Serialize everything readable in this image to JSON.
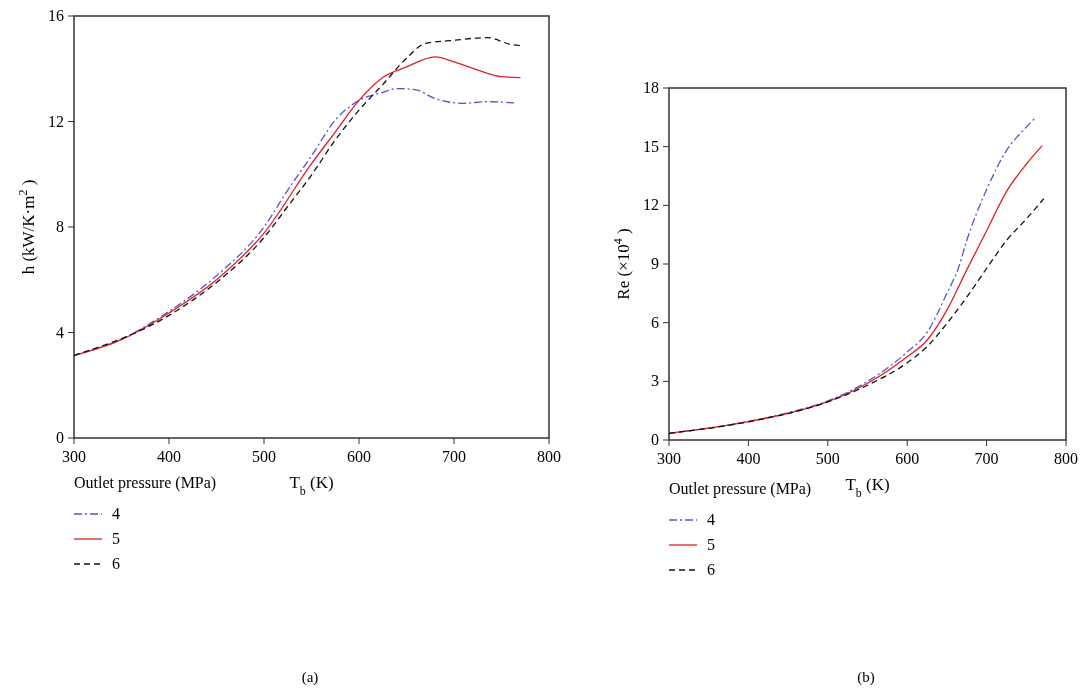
{
  "chart_data": [
    {
      "type": "line",
      "xlabel": "T$_{b}$ (K)",
      "ylabel": "h (kW/K·m$^{2}$)",
      "xlim": [
        300,
        800
      ],
      "xticks": [
        300,
        400,
        500,
        600,
        700,
        800
      ],
      "ylim": [
        0,
        16
      ],
      "yticks": [
        0,
        4,
        8,
        12,
        16
      ],
      "legend": "bottom",
      "legend_title": "Outlet pressure (MPa)",
      "annotations": [
        "(a)"
      ],
      "series": [
        {
          "name": "4",
          "color": "#5555cc",
          "line_style": "dashdot",
          "x": [
            300,
            350,
            400,
            450,
            500,
            525,
            550,
            575,
            600,
            625,
            640,
            660,
            680,
            710,
            735,
            765
          ],
          "values": [
            3.13,
            3.75,
            4.8,
            6.15,
            8.0,
            9.4,
            10.7,
            12.05,
            12.8,
            13.1,
            13.25,
            13.2,
            12.87,
            12.69,
            12.75,
            12.7
          ]
        },
        {
          "name": "5",
          "color": "#dd2222",
          "line_style": "solid",
          "x": [
            300,
            350,
            400,
            450,
            500,
            550,
            575,
            600,
            625,
            650,
            680,
            700,
            725,
            750,
            770
          ],
          "values": [
            3.13,
            3.73,
            4.74,
            6.0,
            7.77,
            10.4,
            11.6,
            12.8,
            13.67,
            14.07,
            14.45,
            14.26,
            13.95,
            13.7,
            13.66
          ]
        },
        {
          "name": "6",
          "color": "#111111",
          "line_style": "dashed",
          "x": [
            300,
            400,
            450,
            500,
            525,
            550,
            575,
            600,
            625,
            650,
            670,
            700,
            735,
            760,
            772
          ],
          "values": [
            3.13,
            4.65,
            5.9,
            7.6,
            8.78,
            9.97,
            11.3,
            12.43,
            13.4,
            14.4,
            14.96,
            15.08,
            15.18,
            14.92,
            14.87
          ]
        }
      ]
    },
    {
      "type": "line",
      "xlabel": "T$_{b}$ (K)",
      "ylabel": "Re (×10$^{4}$)",
      "xlim": [
        300,
        800
      ],
      "xticks": [
        300,
        400,
        500,
        600,
        700,
        800
      ],
      "ylim": [
        0,
        18
      ],
      "yticks": [
        0,
        3,
        6,
        9,
        12,
        15,
        18
      ],
      "legend": "bottom",
      "legend_title": "Outlet pressure (MPa)",
      "annotations": [
        "(b)"
      ],
      "series": [
        {
          "name": "4",
          "color": "#5555cc",
          "line_style": "dashdot",
          "x": [
            300,
            400,
            450,
            500,
            550,
            600,
            625,
            650,
            665,
            675,
            700,
            725,
            750,
            762
          ],
          "values": [
            0.34,
            0.95,
            1.4,
            2.0,
            3.0,
            4.5,
            5.5,
            7.5,
            8.85,
            10.2,
            12.8,
            14.8,
            16.0,
            16.5
          ]
        },
        {
          "name": "5",
          "color": "#dd2222",
          "line_style": "solid",
          "x": [
            300,
            400,
            450,
            500,
            550,
            600,
            625,
            650,
            675,
            700,
            725,
            750,
            770
          ],
          "values": [
            0.34,
            0.94,
            1.36,
            1.96,
            2.9,
            4.26,
            5.1,
            6.64,
            8.7,
            10.7,
            12.7,
            14.1,
            15.05
          ]
        },
        {
          "name": "6",
          "color": "#111111",
          "line_style": "dashed",
          "x": [
            300,
            400,
            500,
            550,
            600,
            625,
            650,
            675,
            700,
            725,
            750,
            772
          ],
          "values": [
            0.34,
            0.93,
            1.95,
            2.8,
            3.95,
            4.77,
            5.96,
            7.3,
            8.77,
            10.2,
            11.3,
            12.34
          ]
        }
      ]
    }
  ]
}
